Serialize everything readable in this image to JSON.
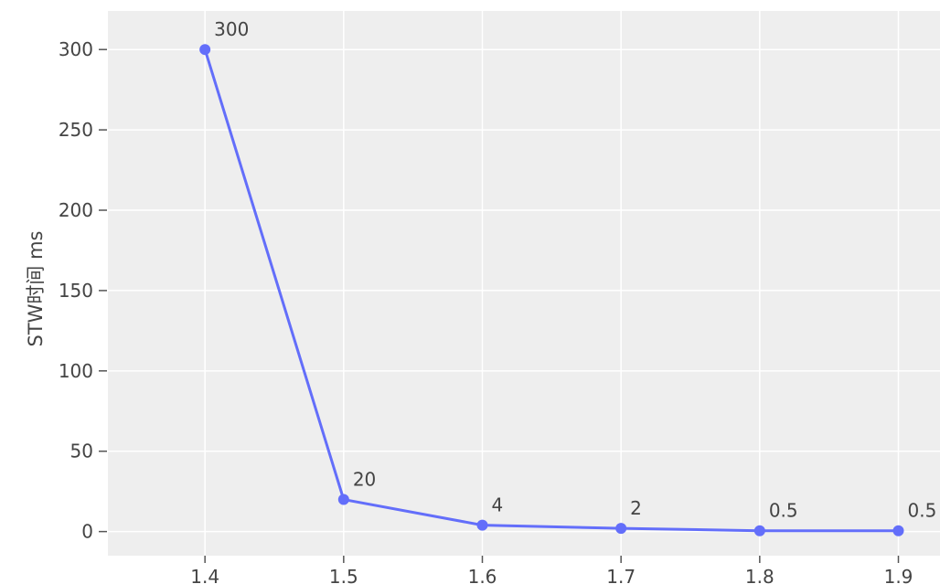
{
  "chart_data": {
    "type": "line",
    "title": "",
    "xlabel": "",
    "ylabel": "STW时间 ms",
    "x": [
      1.4,
      1.5,
      1.6,
      1.7,
      1.8,
      1.9
    ],
    "x_tick_labels": [
      "1.4",
      "1.5",
      "1.6",
      "1.7",
      "1.8",
      "1.9"
    ],
    "series": [
      {
        "values": [
          300,
          20,
          4,
          2,
          0.5,
          0.5
        ],
        "data_labels": [
          "300",
          "20",
          "4",
          "2",
          "0.5",
          "0.5"
        ]
      }
    ],
    "y_ticks": [
      0,
      50,
      100,
      150,
      200,
      250,
      300
    ],
    "y_tick_labels": [
      "0",
      "50",
      "100",
      "150",
      "200",
      "250",
      "300"
    ],
    "xlim": [
      1.33,
      1.93
    ],
    "ylim": [
      -15,
      324
    ],
    "grid": true,
    "legend": "none",
    "colors": {
      "line": "#636efa",
      "plot_background": "#eeeeee",
      "grid": "#ffffff",
      "text": "#444444"
    }
  }
}
